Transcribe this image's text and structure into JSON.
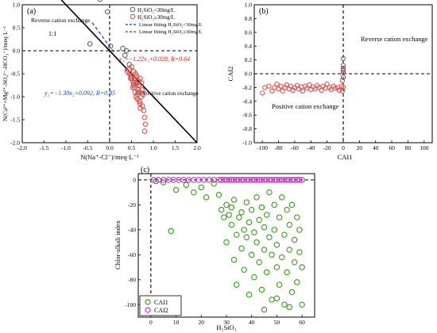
{
  "chart_data": [
    {
      "panel": "(a)",
      "type": "scatter",
      "xlabel": "N(Na⁺-Cl⁻)/meq·L⁻¹",
      "ylabel": "N(Ca²⁺+Mg²⁺-SO₄²⁻-HCO₃⁻)/meq·L⁻¹",
      "xlim": [
        -2.0,
        2.0
      ],
      "ylim": [
        -2.0,
        1.0
      ],
      "xticks": [
        "-2.0",
        "-1.5",
        "-1.0",
        "-0.5",
        "0.0",
        "0.5",
        "1.0",
        "1.5",
        "2.0"
      ],
      "yticks": [
        "-2.0",
        "-1.5",
        "-1.0",
        "-0.5",
        "0.0",
        "0.5",
        "1.0"
      ],
      "annotations": {
        "reverse": "Reverse cation exchange",
        "positive": "Positive cation exchange",
        "one_to_one": "1:1",
        "fit_red": "y₁=−1.22x₁+0.028, R=0.64",
        "fit_blue": "y₂=−1.30x₂+0.092, R=0.85"
      },
      "legend": {
        "placement": "top-right",
        "entries": [
          {
            "label": "H₂SiO₃<30mg/L",
            "marker": "circle",
            "color": "#666666"
          },
          {
            "label": "H₂SiO₃≥30mg/L",
            "marker": "circle",
            "color": "#d9534f"
          },
          {
            "label": "Linear fitting H₂SiO₃<30mg/L",
            "marker": "line",
            "color": "#1f3fbf"
          },
          {
            "label": "Linear fitting H₂SiO₃≥30mg/L",
            "marker": "line",
            "color": "#cc2222"
          }
        ]
      },
      "series": [
        {
          "name": "H₂SiO₃<30mg/L",
          "color": "#666666",
          "points": [
            [
              -0.22,
              1.12
            ],
            [
              -0.45,
              0.15
            ],
            [
              -0.05,
              0.85
            ],
            [
              0.02,
              0.1
            ],
            [
              0.3,
              0.05
            ],
            [
              0.35,
              -0.1
            ],
            [
              0.45,
              -0.3
            ],
            [
              0.5,
              -0.6
            ],
            [
              0.55,
              -0.75
            ],
            [
              0.6,
              -0.7
            ],
            [
              0.38,
              0.0
            ],
            [
              0.65,
              -0.9
            ]
          ]
        },
        {
          "name": "H₂SiO₃≥30mg/L",
          "color": "#d9534f",
          "points": [
            [
              0.45,
              -0.5
            ],
            [
              0.5,
              -0.55
            ],
            [
              0.52,
              -0.65
            ],
            [
              0.55,
              -0.7
            ],
            [
              0.57,
              -0.8
            ],
            [
              0.6,
              -0.6
            ],
            [
              0.62,
              -0.72
            ],
            [
              0.65,
              -0.85
            ],
            [
              0.67,
              -0.75
            ],
            [
              0.7,
              -0.9
            ],
            [
              0.72,
              -1.0
            ],
            [
              0.58,
              -0.9
            ],
            [
              0.63,
              -1.05
            ],
            [
              0.68,
              -1.1
            ],
            [
              0.75,
              -1.2
            ],
            [
              0.78,
              -1.3
            ],
            [
              0.8,
              -1.45
            ],
            [
              0.7,
              -1.25
            ],
            [
              0.6,
              -1.0
            ],
            [
              0.55,
              -0.45
            ],
            [
              0.5,
              -0.35
            ],
            [
              0.48,
              -0.6
            ],
            [
              0.62,
              -0.55
            ],
            [
              0.73,
              -0.7
            ],
            [
              0.76,
              -0.95
            ],
            [
              0.82,
              -1.6
            ],
            [
              0.8,
              -1.75
            ],
            [
              0.66,
              -0.65
            ],
            [
              0.53,
              -0.8
            ],
            [
              0.59,
              -0.5
            ],
            [
              0.7,
              -0.6
            ],
            [
              0.64,
              -0.95
            ],
            [
              0.69,
              -1.15
            ],
            [
              0.74,
              -0.85
            ],
            [
              0.45,
              -0.4
            ],
            [
              0.4,
              -0.45
            ]
          ]
        }
      ],
      "lines": [
        {
          "name": "1:1",
          "color": "#000000",
          "style": "solid",
          "slope": -1,
          "intercept": 0,
          "x": [
            -2.0,
            2.0
          ]
        },
        {
          "name": "Linear fitting H₂SiO₃<30mg/L",
          "color": "#1f3fbf",
          "style": "dashed",
          "slope": -1.3,
          "intercept": 0.092,
          "x": [
            -0.4,
            0.1
          ]
        },
        {
          "name": "Linear fitting H₂SiO₃≥30mg/L",
          "color": "#cc2222",
          "style": "dashed",
          "slope": -1.22,
          "intercept": 0.028,
          "x": [
            0.35,
            0.82
          ]
        }
      ]
    },
    {
      "panel": "(b)",
      "type": "scatter",
      "xlabel": "CAI1",
      "ylabel": "CAI2",
      "xlim": [
        -110,
        110
      ],
      "ylim": [
        -1.0,
        1.0
      ],
      "xticks": [
        "-100",
        "-80",
        "-60",
        "-40",
        "-20",
        "0",
        "20",
        "40",
        "60",
        "80",
        "100"
      ],
      "yticks": [
        "-1.0",
        "-0.8",
        "-0.6",
        "-0.4",
        "-0.2",
        "0.0",
        "0.2",
        "0.4",
        "0.6",
        "0.8",
        "1.0"
      ],
      "annotations": {
        "reverse": "Reverse cation exchange",
        "positive": "Positive cation exchange"
      },
      "series": [
        {
          "name": "",
          "color": "#d9534f",
          "points": [
            [
              -100,
              -0.28
            ],
            [
              -97,
              -0.2
            ],
            [
              -92,
              -0.18
            ],
            [
              -88,
              -0.25
            ],
            [
              -85,
              -0.2
            ],
            [
              -82,
              -0.15
            ],
            [
              -80,
              -0.22
            ],
            [
              -77,
              -0.18
            ],
            [
              -75,
              -0.25
            ],
            [
              -72,
              -0.2
            ],
            [
              -70,
              -0.16
            ],
            [
              -67,
              -0.22
            ],
            [
              -65,
              -0.18
            ],
            [
              -62,
              -0.24
            ],
            [
              -60,
              -0.2
            ],
            [
              -57,
              -0.17
            ],
            [
              -55,
              -0.22
            ],
            [
              -52,
              -0.19
            ],
            [
              -50,
              -0.25
            ],
            [
              -47,
              -0.18
            ],
            [
              -45,
              -0.21
            ],
            [
              -42,
              -0.16
            ],
            [
              -40,
              -0.23
            ],
            [
              -37,
              -0.19
            ],
            [
              -35,
              -0.22
            ],
            [
              -32,
              -0.17
            ],
            [
              -30,
              -0.2
            ],
            [
              -27,
              -0.24
            ],
            [
              -25,
              -0.18
            ],
            [
              -22,
              -0.21
            ],
            [
              -20,
              -0.15
            ],
            [
              -17,
              -0.2
            ],
            [
              -15,
              -0.23
            ],
            [
              -12,
              -0.18
            ],
            [
              -10,
              -0.21
            ],
            [
              -7,
              -0.2
            ],
            [
              -5,
              -0.24
            ],
            [
              -2,
              -0.18
            ],
            [
              -1,
              -0.1
            ],
            [
              0,
              -0.05
            ],
            [
              0,
              0.05
            ],
            [
              0,
              -0.2
            ],
            [
              -1,
              -0.25
            ]
          ]
        },
        {
          "name": "",
          "color": "#666666",
          "points": [
            [
              0,
              0.22
            ],
            [
              0,
              0.12
            ],
            [
              0,
              0.02
            ],
            [
              0,
              -0.05
            ],
            [
              0,
              0.08
            ]
          ]
        }
      ]
    },
    {
      "panel": "(c)",
      "type": "scatter",
      "xlabel": "H₂SiO₃",
      "ylabel": "Chlor-alkali index",
      "xlim": [
        -5,
        65
      ],
      "ylim": [
        -110,
        5
      ],
      "xticks": [
        "0",
        "10",
        "20",
        "30",
        "40",
        "50",
        "60"
      ],
      "yticks": [
        "-100",
        "-80",
        "-60",
        "-40",
        "-20",
        "0"
      ],
      "legend": {
        "placement": "bottom-left",
        "entries": [
          {
            "label": "CAI1",
            "color": "#3a9a1e"
          },
          {
            "label": "CAI2",
            "color": "#cc33cc"
          }
        ]
      },
      "series": [
        {
          "name": "CAI1",
          "color": "#3a9a1e",
          "points": [
            [
              2,
              -1
            ],
            [
              5,
              -2
            ],
            [
              8,
              -41
            ],
            [
              10,
              -8
            ],
            [
              14,
              -4
            ],
            [
              17,
              -10
            ],
            [
              20,
              -6
            ],
            [
              22,
              -14
            ],
            [
              25,
              -3
            ],
            [
              27,
              -12
            ],
            [
              28,
              -24
            ],
            [
              29,
              -30
            ],
            [
              30,
              -20
            ],
            [
              30,
              -50
            ],
            [
              31,
              -28
            ],
            [
              32,
              -22
            ],
            [
              32,
              -36
            ],
            [
              33,
              -16
            ],
            [
              33,
              -64
            ],
            [
              34,
              -44
            ],
            [
              34,
              -84
            ],
            [
              35,
              -30
            ],
            [
              36,
              -26
            ],
            [
              36,
              -55
            ],
            [
              37,
              -40
            ],
            [
              37,
              -72
            ],
            [
              38,
              -18
            ],
            [
              38,
              -46
            ],
            [
              39,
              -34
            ],
            [
              39,
              -92
            ],
            [
              40,
              -24
            ],
            [
              40,
              -60
            ],
            [
              41,
              -42
            ],
            [
              41,
              -78
            ],
            [
              42,
              -14
            ],
            [
              42,
              -50
            ],
            [
              43,
              -32
            ],
            [
              43,
              -66
            ],
            [
              44,
              -22
            ],
            [
              44,
              -88
            ],
            [
              45,
              -38
            ],
            [
              45,
              -56
            ],
            [
              46,
              -28
            ],
            [
              46,
              -74
            ],
            [
              47,
              -10
            ],
            [
              47,
              -46
            ],
            [
              48,
              -60
            ],
            [
              48,
              -96
            ],
            [
              49,
              -20
            ],
            [
              49,
              -40
            ],
            [
              50,
              -70
            ],
            [
              50,
              -52
            ],
            [
              51,
              -30
            ],
            [
              51,
              -84
            ],
            [
              52,
              -14
            ],
            [
              52,
              -62
            ],
            [
              53,
              -44
            ],
            [
              53,
              -100
            ],
            [
              54,
              -24
            ],
            [
              54,
              -74
            ],
            [
              55,
              -36
            ],
            [
              55,
              -56
            ],
            [
              56,
              -90
            ],
            [
              56,
              -20
            ],
            [
              57,
              -48
            ],
            [
              57,
              -66
            ],
            [
              58,
              -30
            ],
            [
              58,
              -82
            ],
            [
              59,
              -58
            ],
            [
              59,
              -40
            ],
            [
              60,
              -100
            ],
            [
              60,
              -70
            ],
            [
              55,
              -102
            ],
            [
              50,
              -95
            ],
            [
              45,
              -104
            ]
          ]
        },
        {
          "name": "CAI2",
          "color": "#cc33cc",
          "points": [
            [
              1,
              0
            ],
            [
              3,
              0
            ],
            [
              5,
              0
            ],
            [
              7,
              0
            ],
            [
              9,
              0
            ],
            [
              11,
              0
            ],
            [
              13,
              0
            ],
            [
              15,
              0
            ],
            [
              17,
              0
            ],
            [
              19,
              0
            ],
            [
              21,
              0
            ],
            [
              23,
              0
            ],
            [
              25,
              0
            ],
            [
              27,
              0
            ],
            [
              28,
              0
            ],
            [
              29,
              0
            ],
            [
              30,
              0
            ],
            [
              31,
              0
            ],
            [
              32,
              0
            ],
            [
              33,
              0
            ],
            [
              34,
              0
            ],
            [
              35,
              0
            ],
            [
              36,
              0
            ],
            [
              37,
              0
            ],
            [
              38,
              0
            ],
            [
              39,
              0
            ],
            [
              40,
              0
            ],
            [
              41,
              0
            ],
            [
              42,
              0
            ],
            [
              43,
              0
            ],
            [
              44,
              0
            ],
            [
              45,
              0
            ],
            [
              46,
              0
            ],
            [
              47,
              0
            ],
            [
              48,
              0
            ],
            [
              49,
              0
            ],
            [
              50,
              0
            ],
            [
              51,
              0
            ],
            [
              52,
              0
            ],
            [
              53,
              0
            ],
            [
              54,
              0
            ],
            [
              55,
              0
            ],
            [
              56,
              0
            ],
            [
              57,
              0
            ],
            [
              58,
              0
            ],
            [
              59,
              0
            ],
            [
              60,
              0
            ]
          ]
        }
      ]
    }
  ]
}
